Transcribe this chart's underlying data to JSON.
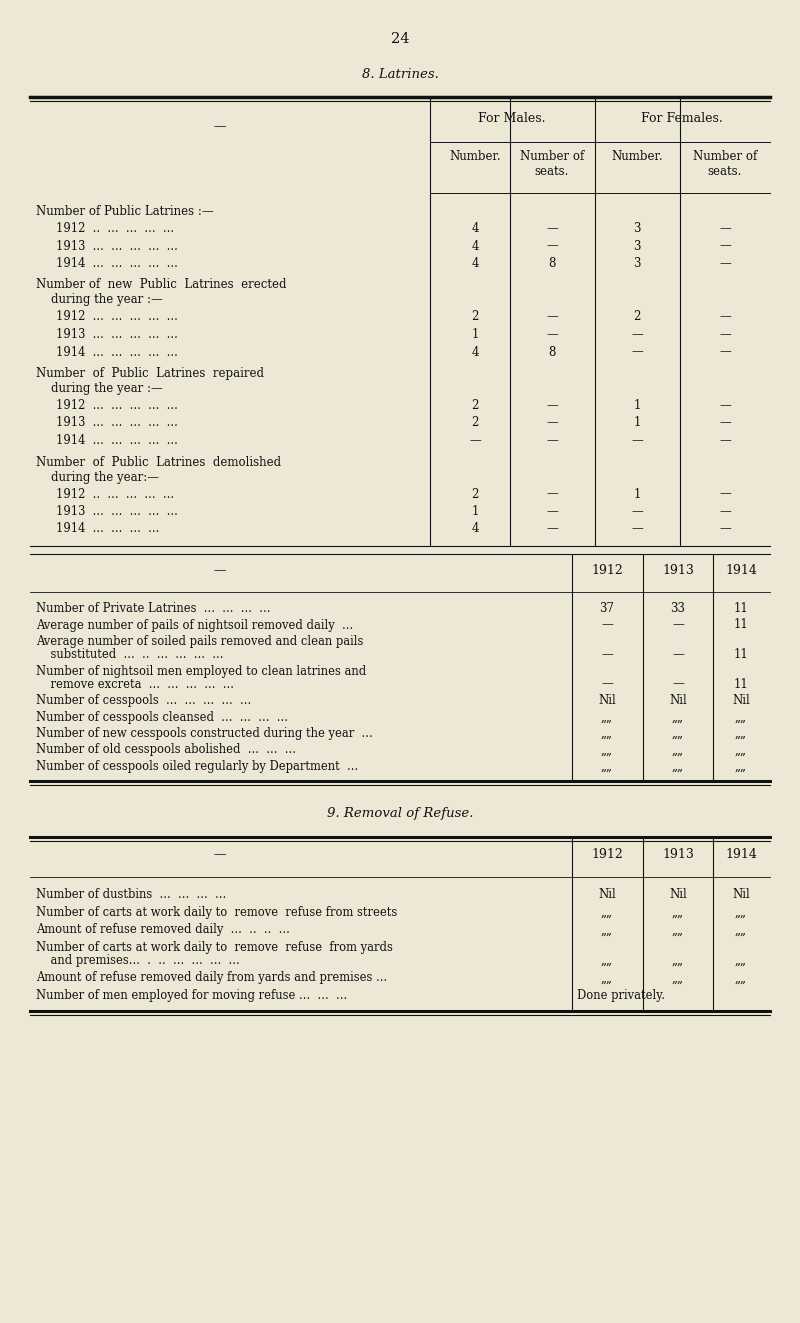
{
  "bg_color": "#ece8d5",
  "text_color": "#111111",
  "page_number": "24",
  "section1_title": "8. Latrines.",
  "section2_title": "9. Removal of Refuse.",
  "table1_groups": [
    {
      "heading_lines": [
        "Number of Public Latrines :—"
      ],
      "rows": [
        {
          "label": "1912  ..  ...  ...  ...  ...",
          "vals": [
            "4",
            "—",
            "3",
            "—"
          ]
        },
        {
          "label": "1913  ...  ...  ...  ...  ...",
          "vals": [
            "4",
            "—",
            "3",
            "—"
          ]
        },
        {
          "label": "1914  ...  ...  ...  ...  ...",
          "vals": [
            "4",
            "8",
            "3",
            "—"
          ]
        }
      ]
    },
    {
      "heading_lines": [
        "Number of  new  Public  Latrines  erected",
        "    during the year :—"
      ],
      "rows": [
        {
          "label": "1912  ...  ...  ...  ...  ...",
          "vals": [
            "2",
            "—",
            "2",
            "—"
          ]
        },
        {
          "label": "1913  ...  ...  ...  ...  ...",
          "vals": [
            "1",
            "—",
            "—",
            "—"
          ]
        },
        {
          "label": "1914  ...  ...  ...  ...  ...",
          "vals": [
            "4",
            "8",
            "—",
            "—"
          ]
        }
      ]
    },
    {
      "heading_lines": [
        "Number  of  Public  Latrines  repaired",
        "    during the year :—"
      ],
      "rows": [
        {
          "label": "1912  ...  ...  ...  ...  ...",
          "vals": [
            "2",
            "—",
            "1",
            "—"
          ]
        },
        {
          "label": "1913  ...  ...  ...  ...  ...",
          "vals": [
            "2",
            "—",
            "1",
            "—"
          ]
        },
        {
          "label": "1914  ...  ...  ...  ...  ...",
          "vals": [
            "—",
            "—",
            "—",
            "—"
          ]
        }
      ]
    },
    {
      "heading_lines": [
        "Number  of  Public  Latrines  demolished",
        "    during the year:—"
      ],
      "rows": [
        {
          "label": "1912  ..  ...  ...  ...  ...",
          "vals": [
            "2",
            "—",
            "1",
            "—"
          ]
        },
        {
          "label": "1913  ...  ...  ...  ...  ...",
          "vals": [
            "1",
            "—",
            "—",
            "—"
          ]
        },
        {
          "label": "1914  ...  ...  ...  ...",
          "vals": [
            "4",
            "—",
            "—",
            "—"
          ]
        }
      ]
    }
  ],
  "table2_rows": [
    {
      "label": "Number of Private Latrines  ...  ...  ...  ...",
      "vals": [
        "37",
        "33",
        "11"
      ],
      "wrap": false
    },
    {
      "label": "Average number of pails of nightsoil removed daily  ...",
      "vals": [
        "—",
        "—",
        "11"
      ],
      "wrap": false
    },
    {
      "label": "Average number of soiled pails removed and clean pails",
      "label2": "    substituted  ...  ..  ...  ...  ...  ...",
      "vals": [
        "—",
        "—",
        "11"
      ],
      "wrap": true
    },
    {
      "label": "Number of nightsoil men employed to clean latrines and",
      "label2": "    remove excreta  ...  ...  ...  ...  ...",
      "vals": [
        "—",
        "—",
        "11"
      ],
      "wrap": true
    },
    {
      "label": "Number of cesspools  ...  ...  ...  ...  ...",
      "vals": [
        "Nil",
        "Nil",
        "Nil"
      ],
      "wrap": false
    },
    {
      "label": "Number of cesspools cleansed  ...  ...  ...  ...",
      "vals": [
        "„„",
        "„„",
        "„„"
      ],
      "wrap": false
    },
    {
      "label": "Number of new cesspools constructed during the year  ...",
      "vals": [
        "„„",
        "„„",
        "„„"
      ],
      "wrap": false
    },
    {
      "label": "Number of old cesspools abolished  ...  ...  ...",
      "vals": [
        "„„",
        "„„",
        "„„"
      ],
      "wrap": false
    },
    {
      "label": "Number of cesspools oiled regularly by Department  ...",
      "vals": [
        "„„",
        "„„",
        "„„"
      ],
      "wrap": false
    }
  ],
  "table3_rows": [
    {
      "label": "Number of dustbins  ...  ...  ...  ...",
      "vals": [
        "Nil",
        "Nil",
        "Nil"
      ],
      "wrap": false
    },
    {
      "label": "Number of carts at work daily to  remove  refuse from streets",
      "vals": [
        "„„",
        "„„",
        "„„"
      ],
      "wrap": false
    },
    {
      "label": "Amount of refuse removed daily  ...  ..  ..  ...",
      "vals": [
        "„„",
        "„„",
        "„„"
      ],
      "wrap": false
    },
    {
      "label": "Number of carts at work daily to  remove  refuse  from yards",
      "label2": "    and premises...  .  ..  ...  ...  ...  ...",
      "vals": [
        "„„",
        "„„",
        "„„"
      ],
      "wrap": true
    },
    {
      "label": "Amount of refuse removed daily from yards and premises ...",
      "vals": [
        "„„",
        "„„",
        "„„"
      ],
      "wrap": false
    },
    {
      "label": "Number of men employed for moving refuse ...  ...  ...",
      "vals": [
        "Done privately.",
        "",
        ""
      ],
      "wrap": false
    }
  ]
}
